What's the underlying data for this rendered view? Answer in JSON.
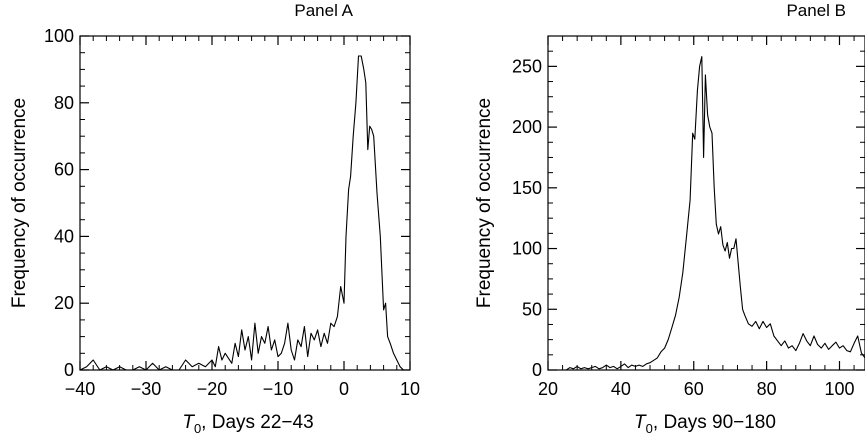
{
  "chart_data": [
    {
      "type": "line",
      "title": "Panel A",
      "xlabel_symbol": "T",
      "xlabel_sub": "0",
      "xlabel_rest": ", Days 22−43",
      "ylabel": "Frequency of occurrence",
      "xlim": [
        -40,
        10
      ],
      "ylim": [
        0,
        100
      ],
      "x_ticks": [
        -40,
        -30,
        -20,
        -10,
        0,
        10
      ],
      "x_tick_labels": [
        "−40",
        "−30",
        "−20",
        "−10",
        "0",
        "10"
      ],
      "y_ticks": [
        0,
        20,
        40,
        60,
        80,
        100
      ],
      "y_tick_labels": [
        "0",
        "20",
        "40",
        "60",
        "80",
        "100"
      ],
      "grid": false,
      "series": [
        {
          "color": "#000000",
          "points": [
            [
              -40,
              0
            ],
            [
              -39,
              1
            ],
            [
              -38,
              3
            ],
            [
              -37,
              0
            ],
            [
              -36,
              1
            ],
            [
              -35,
              0
            ],
            [
              -34,
              1
            ],
            [
              -33,
              0
            ],
            [
              -32,
              0
            ],
            [
              -31,
              1
            ],
            [
              -30,
              0
            ],
            [
              -29,
              2
            ],
            [
              -28,
              0
            ],
            [
              -27,
              1
            ],
            [
              -26,
              0
            ],
            [
              -25,
              0
            ],
            [
              -24,
              3
            ],
            [
              -23,
              1
            ],
            [
              -22,
              2
            ],
            [
              -21,
              1
            ],
            [
              -20,
              3
            ],
            [
              -19.5,
              1
            ],
            [
              -19,
              7
            ],
            [
              -18.5,
              3
            ],
            [
              -18,
              5
            ],
            [
              -17,
              2
            ],
            [
              -16.5,
              8
            ],
            [
              -16,
              4
            ],
            [
              -15.5,
              12
            ],
            [
              -15,
              6
            ],
            [
              -14.5,
              10
            ],
            [
              -14,
              3
            ],
            [
              -13.5,
              14
            ],
            [
              -13,
              5
            ],
            [
              -12.5,
              10
            ],
            [
              -12,
              8
            ],
            [
              -11.5,
              13
            ],
            [
              -11,
              6
            ],
            [
              -10.5,
              9
            ],
            [
              -10,
              4
            ],
            [
              -9.5,
              5
            ],
            [
              -9,
              8
            ],
            [
              -8.5,
              14
            ],
            [
              -8,
              6
            ],
            [
              -7.5,
              3
            ],
            [
              -7,
              9
            ],
            [
              -6.5,
              7
            ],
            [
              -6,
              13
            ],
            [
              -5.5,
              4
            ],
            [
              -5,
              11
            ],
            [
              -4.5,
              9
            ],
            [
              -4,
              12
            ],
            [
              -3.5,
              7
            ],
            [
              -3,
              11
            ],
            [
              -2.5,
              8
            ],
            [
              -2,
              14
            ],
            [
              -1.5,
              13
            ],
            [
              -1,
              16
            ],
            [
              -0.5,
              25
            ],
            [
              0,
              20
            ],
            [
              0.3,
              40
            ],
            [
              0.7,
              54
            ],
            [
              1,
              58
            ],
            [
              1.4,
              70
            ],
            [
              1.8,
              80
            ],
            [
              2.2,
              94
            ],
            [
              2.6,
              94
            ],
            [
              3,
              90
            ],
            [
              3.3,
              86
            ],
            [
              3.6,
              66
            ],
            [
              3.9,
              73
            ],
            [
              4.2,
              72
            ],
            [
              4.5,
              70
            ],
            [
              5,
              53
            ],
            [
              5.5,
              40
            ],
            [
              6,
              18
            ],
            [
              6.3,
              20
            ],
            [
              6.6,
              10
            ],
            [
              7,
              8
            ],
            [
              7.5,
              5
            ],
            [
              8,
              3
            ],
            [
              8.5,
              1
            ],
            [
              9,
              0
            ],
            [
              9.5,
              0
            ],
            [
              10,
              0
            ]
          ]
        }
      ]
    },
    {
      "type": "line",
      "title": "Panel B",
      "xlabel_symbol": "T",
      "xlabel_sub": "0",
      "xlabel_rest": ", Days 90−180",
      "ylabel": "Frequency of occurrence",
      "xlim": [
        20,
        107
      ],
      "ylim": [
        0,
        275
      ],
      "x_ticks": [
        20,
        40,
        60,
        80,
        100
      ],
      "x_tick_labels": [
        "20",
        "40",
        "60",
        "80",
        "100"
      ],
      "y_ticks": [
        0,
        50,
        100,
        150,
        200,
        250
      ],
      "y_tick_labels": [
        "0",
        "50",
        "100",
        "150",
        "200",
        "250"
      ],
      "grid": false,
      "series": [
        {
          "color": "#000000",
          "points": [
            [
              25,
              0
            ],
            [
              26,
              2
            ],
            [
              27,
              1
            ],
            [
              28,
              3
            ],
            [
              29,
              1
            ],
            [
              30,
              2
            ],
            [
              31,
              1
            ],
            [
              32,
              2
            ],
            [
              33,
              3
            ],
            [
              34,
              1
            ],
            [
              35,
              2
            ],
            [
              36,
              4
            ],
            [
              37,
              2
            ],
            [
              38,
              3
            ],
            [
              39,
              1
            ],
            [
              40,
              3
            ],
            [
              41,
              5
            ],
            [
              42,
              2
            ],
            [
              43,
              4
            ],
            [
              44,
              3
            ],
            [
              45,
              4
            ],
            [
              46,
              3
            ],
            [
              47,
              5
            ],
            [
              48,
              6
            ],
            [
              49,
              8
            ],
            [
              50,
              10
            ],
            [
              51,
              15
            ],
            [
              52,
              18
            ],
            [
              53,
              25
            ],
            [
              54,
              35
            ],
            [
              55,
              45
            ],
            [
              56,
              60
            ],
            [
              57,
              80
            ],
            [
              58,
              110
            ],
            [
              59,
              140
            ],
            [
              59.7,
              195
            ],
            [
              60.3,
              190
            ],
            [
              61,
              230
            ],
            [
              61.6,
              250
            ],
            [
              62.2,
              258
            ],
            [
              62.7,
              175
            ],
            [
              63.2,
              243
            ],
            [
              63.8,
              210
            ],
            [
              64.4,
              200
            ],
            [
              65,
              195
            ],
            [
              65.6,
              150
            ],
            [
              66.2,
              120
            ],
            [
              66.8,
              112
            ],
            [
              67.4,
              118
            ],
            [
              68,
              103
            ],
            [
              68.6,
              98
            ],
            [
              69.2,
              105
            ],
            [
              69.8,
              92
            ],
            [
              70.4,
              100
            ],
            [
              71,
              100
            ],
            [
              71.6,
              108
            ],
            [
              72.2,
              88
            ],
            [
              72.8,
              68
            ],
            [
              73.4,
              50
            ],
            [
              74,
              45
            ],
            [
              75,
              38
            ],
            [
              76,
              36
            ],
            [
              77,
              40
            ],
            [
              78,
              34
            ],
            [
              79,
              40
            ],
            [
              80,
              35
            ],
            [
              81,
              38
            ],
            [
              82,
              28
            ],
            [
              83,
              24
            ],
            [
              84,
              20
            ],
            [
              85,
              24
            ],
            [
              86,
              18
            ],
            [
              87,
              20
            ],
            [
              88,
              16
            ],
            [
              89,
              22
            ],
            [
              90,
              30
            ],
            [
              91,
              24
            ],
            [
              92,
              20
            ],
            [
              93,
              28
            ],
            [
              94,
              21
            ],
            [
              95,
              18
            ],
            [
              96,
              22
            ],
            [
              97,
              17
            ],
            [
              98,
              20
            ],
            [
              99,
              23
            ],
            [
              100,
              18
            ],
            [
              101,
              20
            ],
            [
              102,
              16
            ],
            [
              103,
              15
            ],
            [
              104,
              22
            ],
            [
              105,
              28
            ],
            [
              106,
              14
            ],
            [
              107,
              10
            ]
          ]
        }
      ]
    }
  ]
}
